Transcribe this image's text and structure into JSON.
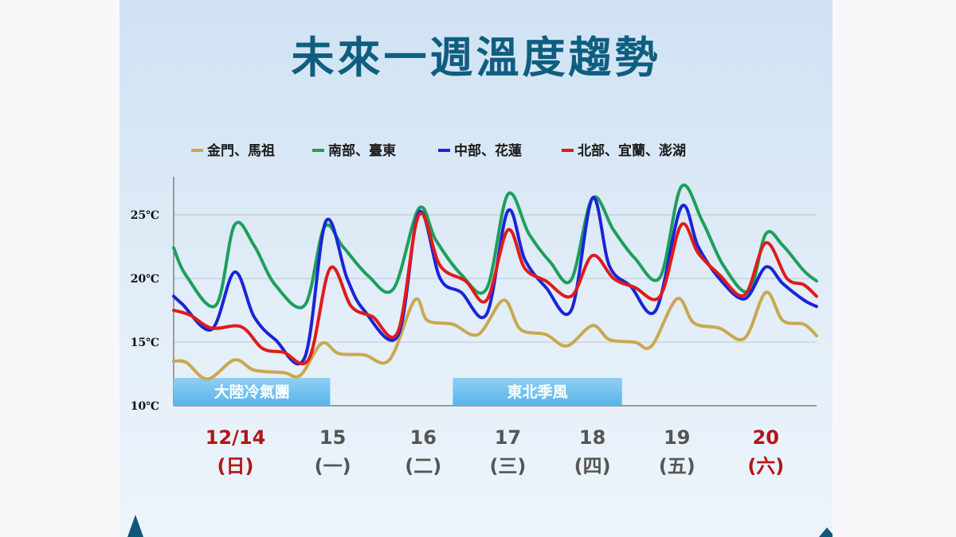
{
  "title": "未來一週溫度趨勢",
  "colors": {
    "title": "#0f5e80",
    "weekend": "#b3141b",
    "weekday": "#555555",
    "band": "#5ab4ea"
  },
  "chart_data": {
    "type": "line",
    "ylim": [
      10,
      28
    ],
    "xlim": [
      0,
      7.6
    ],
    "yticks": [
      {
        "value": 10,
        "label": "10℃"
      },
      {
        "value": 15,
        "label": "15℃"
      },
      {
        "value": 20,
        "label": "20℃"
      },
      {
        "value": 25,
        "label": "25℃"
      }
    ],
    "grid": true,
    "legend": "top",
    "days": [
      {
        "x": 0.73,
        "date": "12/14",
        "weekday": "(日)",
        "weekend": true
      },
      {
        "x": 1.88,
        "date": "15",
        "weekday": "(一)",
        "weekend": false
      },
      {
        "x": 2.95,
        "date": "16",
        "weekday": "(二)",
        "weekend": false
      },
      {
        "x": 3.95,
        "date": "17",
        "weekday": "(三)",
        "weekend": false
      },
      {
        "x": 4.95,
        "date": "18",
        "weekday": "(四)",
        "weekend": false
      },
      {
        "x": 5.95,
        "date": "19",
        "weekday": "(五)",
        "weekend": false
      },
      {
        "x": 7.0,
        "date": "20",
        "weekday": "(六)",
        "weekend": true
      }
    ],
    "bands": [
      {
        "label": "大陸冷氣團",
        "x0": 0.0,
        "x1": 1.85
      },
      {
        "label": "東北季風",
        "x0": 3.3,
        "x1": 5.3
      }
    ],
    "series": [
      {
        "name": "金門、馬祖",
        "color": "#c9a84f",
        "points": [
          [
            0,
            13.5
          ],
          [
            0.15,
            13.4
          ],
          [
            0.4,
            12.1
          ],
          [
            0.72,
            13.6
          ],
          [
            0.95,
            12.8
          ],
          [
            1.3,
            12.6
          ],
          [
            1.5,
            12.4
          ],
          [
            1.75,
            14.9
          ],
          [
            1.95,
            14.1
          ],
          [
            2.25,
            14.0
          ],
          [
            2.55,
            13.6
          ],
          [
            2.85,
            18.3
          ],
          [
            3.0,
            16.7
          ],
          [
            3.3,
            16.4
          ],
          [
            3.6,
            15.6
          ],
          [
            3.9,
            18.3
          ],
          [
            4.1,
            16.0
          ],
          [
            4.4,
            15.6
          ],
          [
            4.65,
            14.7
          ],
          [
            4.95,
            16.3
          ],
          [
            5.15,
            15.2
          ],
          [
            5.45,
            15.0
          ],
          [
            5.65,
            14.7
          ],
          [
            5.95,
            18.4
          ],
          [
            6.15,
            16.5
          ],
          [
            6.45,
            16.1
          ],
          [
            6.75,
            15.3
          ],
          [
            7.0,
            18.9
          ],
          [
            7.2,
            16.7
          ],
          [
            7.45,
            16.4
          ],
          [
            7.6,
            15.5
          ]
        ]
      },
      {
        "name": "南部、臺東",
        "color": "#1f9e5c",
        "points": [
          [
            0,
            22.4
          ],
          [
            0.15,
            20.2
          ],
          [
            0.5,
            17.9
          ],
          [
            0.72,
            24.2
          ],
          [
            0.95,
            22.6
          ],
          [
            1.2,
            19.5
          ],
          [
            1.55,
            17.9
          ],
          [
            1.78,
            24.0
          ],
          [
            2.0,
            22.5
          ],
          [
            2.3,
            20.2
          ],
          [
            2.6,
            19.2
          ],
          [
            2.9,
            25.5
          ],
          [
            3.1,
            23.0
          ],
          [
            3.4,
            20.3
          ],
          [
            3.7,
            19.2
          ],
          [
            3.95,
            26.6
          ],
          [
            4.2,
            23.5
          ],
          [
            4.45,
            21.3
          ],
          [
            4.7,
            19.9
          ],
          [
            4.95,
            26.3
          ],
          [
            5.2,
            23.8
          ],
          [
            5.45,
            21.6
          ],
          [
            5.75,
            20.1
          ],
          [
            6.0,
            27.2
          ],
          [
            6.25,
            24.5
          ],
          [
            6.5,
            21.0
          ],
          [
            6.8,
            19.0
          ],
          [
            7.0,
            23.5
          ],
          [
            7.2,
            22.6
          ],
          [
            7.45,
            20.6
          ],
          [
            7.6,
            19.8
          ]
        ]
      },
      {
        "name": "中部、花蓮",
        "color": "#1a25d6",
        "points": [
          [
            0,
            18.6
          ],
          [
            0.1,
            18.0
          ],
          [
            0.45,
            16.0
          ],
          [
            0.72,
            20.5
          ],
          [
            0.95,
            17.0
          ],
          [
            1.2,
            15.2
          ],
          [
            1.55,
            13.8
          ],
          [
            1.8,
            24.5
          ],
          [
            2.05,
            20.0
          ],
          [
            2.25,
            17.5
          ],
          [
            2.65,
            15.5
          ],
          [
            2.9,
            25.2
          ],
          [
            3.15,
            20.0
          ],
          [
            3.4,
            18.9
          ],
          [
            3.7,
            17.2
          ],
          [
            3.95,
            25.3
          ],
          [
            4.15,
            21.5
          ],
          [
            4.4,
            19.3
          ],
          [
            4.7,
            17.5
          ],
          [
            4.95,
            26.3
          ],
          [
            5.15,
            21.0
          ],
          [
            5.4,
            19.4
          ],
          [
            5.7,
            17.5
          ],
          [
            6.0,
            25.6
          ],
          [
            6.2,
            22.5
          ],
          [
            6.45,
            20.0
          ],
          [
            6.75,
            18.4
          ],
          [
            7.0,
            20.9
          ],
          [
            7.2,
            19.6
          ],
          [
            7.45,
            18.3
          ],
          [
            7.6,
            17.8
          ]
        ]
      },
      {
        "name": "北部、宜蘭、澎湖",
        "color": "#e01b1b",
        "points": [
          [
            0,
            17.5
          ],
          [
            0.2,
            17.1
          ],
          [
            0.45,
            16.1
          ],
          [
            0.8,
            16.2
          ],
          [
            1.05,
            14.5
          ],
          [
            1.3,
            14.2
          ],
          [
            1.6,
            13.7
          ],
          [
            1.85,
            20.8
          ],
          [
            2.1,
            17.8
          ],
          [
            2.35,
            17.0
          ],
          [
            2.65,
            15.8
          ],
          [
            2.9,
            25.0
          ],
          [
            3.15,
            21.0
          ],
          [
            3.45,
            19.8
          ],
          [
            3.7,
            18.3
          ],
          [
            3.95,
            23.8
          ],
          [
            4.15,
            20.8
          ],
          [
            4.4,
            19.8
          ],
          [
            4.7,
            18.6
          ],
          [
            4.95,
            21.8
          ],
          [
            5.2,
            20.0
          ],
          [
            5.45,
            19.3
          ],
          [
            5.75,
            18.6
          ],
          [
            6.0,
            24.2
          ],
          [
            6.2,
            22.0
          ],
          [
            6.45,
            20.3
          ],
          [
            6.75,
            18.7
          ],
          [
            7.0,
            22.8
          ],
          [
            7.25,
            20.0
          ],
          [
            7.45,
            19.5
          ],
          [
            7.6,
            18.6
          ]
        ]
      }
    ]
  }
}
